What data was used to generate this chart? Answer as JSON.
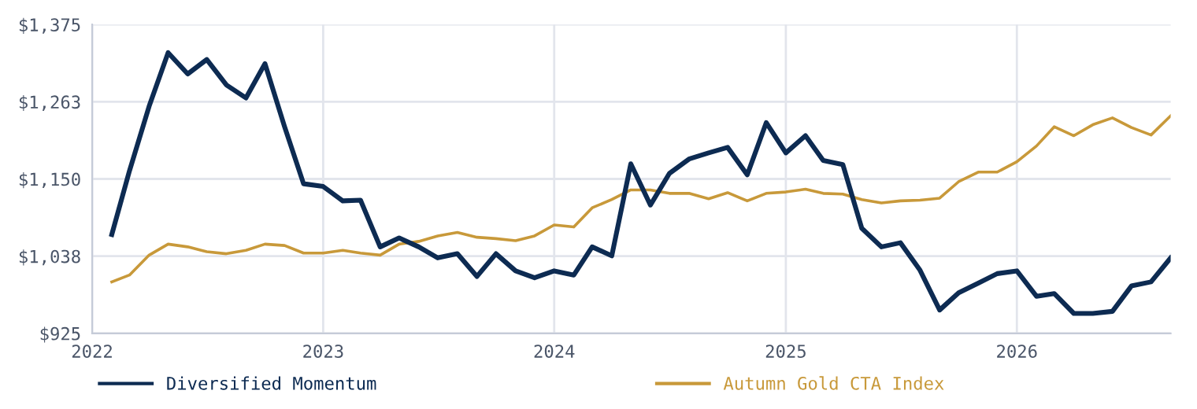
{
  "chart_data": {
    "type": "line",
    "x": [
      "2022-02",
      "2022-03",
      "2022-04",
      "2022-05",
      "2022-06",
      "2022-07",
      "2022-08",
      "2022-09",
      "2022-10",
      "2022-11",
      "2022-12",
      "2023-01",
      "2023-02",
      "2023-03",
      "2023-04",
      "2023-05",
      "2023-06",
      "2023-07",
      "2023-08",
      "2023-09",
      "2023-10",
      "2023-11",
      "2023-12",
      "2024-01",
      "2024-02",
      "2024-03",
      "2024-04",
      "2024-05",
      "2024-06",
      "2024-07",
      "2024-08",
      "2024-09",
      "2024-10",
      "2024-11",
      "2024-12",
      "2025-01",
      "2025-02",
      "2025-03",
      "2025-04",
      "2025-05",
      "2025-06",
      "2025-07",
      "2025-08",
      "2025-09",
      "2025-10",
      "2025-11",
      "2025-12",
      "2026-01",
      "2026-02",
      "2026-03",
      "2026-04",
      "2026-05",
      "2026-06",
      "2026-07",
      "2026-08",
      "2026-09"
    ],
    "series": [
      {
        "name": "Diversified Momentum",
        "color": "#0d2b52",
        "values": [
          1069,
          1162,
          1256,
          1334,
          1303,
          1324,
          1287,
          1268,
          1318,
          1226,
          1143,
          1139,
          1118,
          1119,
          1051,
          1064,
          1051,
          1035,
          1041,
          1008,
          1041,
          1016,
          1006,
          1016,
          1010,
          1051,
          1038,
          1172,
          1112,
          1158,
          1179,
          1188,
          1196,
          1156,
          1232,
          1188,
          1213,
          1177,
          1171,
          1078,
          1051,
          1057,
          1017,
          959,
          984,
          998,
          1012,
          1016,
          979,
          983,
          954,
          954,
          957,
          994,
          1000,
          1035
        ]
      },
      {
        "name": "Autumn Gold CTA Index",
        "color": "#c8993a",
        "values": [
          1000,
          1010,
          1039,
          1055,
          1051,
          1044,
          1041,
          1046,
          1055,
          1053,
          1042,
          1042,
          1046,
          1042,
          1039,
          1055,
          1059,
          1067,
          1072,
          1065,
          1063,
          1060,
          1067,
          1083,
          1080,
          1108,
          1120,
          1134,
          1134,
          1129,
          1129,
          1121,
          1130,
          1118,
          1129,
          1131,
          1135,
          1129,
          1128,
          1120,
          1115,
          1118,
          1119,
          1122,
          1146,
          1160,
          1160,
          1175,
          1198,
          1226,
          1213,
          1229,
          1239,
          1225,
          1214,
          1242
        ]
      }
    ],
    "xlim": [
      "2022-01",
      "2026-09"
    ],
    "xticks": [
      "2022",
      "2023",
      "2024",
      "2025",
      "2026"
    ],
    "ylim": [
      925,
      1375
    ],
    "yticks": [
      {
        "value": 925,
        "label": "$925"
      },
      {
        "value": 1037.5,
        "label": "$1,038"
      },
      {
        "value": 1150,
        "label": "$1,150"
      },
      {
        "value": 1262.5,
        "label": "$1,263"
      },
      {
        "value": 1375,
        "label": "$1,375"
      }
    ],
    "grid": true,
    "legend": "bottom",
    "marker": "none",
    "line_style": "solid"
  }
}
